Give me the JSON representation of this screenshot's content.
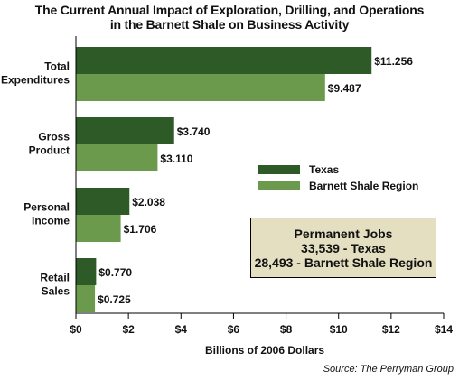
{
  "title_lines": [
    "The Current Annual Impact of Exploration, Drilling, and Operations",
    "in the Barnett Shale on Business Activity"
  ],
  "callout": {
    "heading": "Permanent Jobs",
    "line1": "33,539 - Texas",
    "line2": "28,493 - Barnett Shale Region",
    "background": "#e5dfc1"
  },
  "source": "Source: The Perryman Group",
  "colors": {
    "texas": "#2d5a27",
    "barnett": "#6c9a4d"
  },
  "chart_data": {
    "type": "bar",
    "orientation": "horizontal",
    "categories": [
      [
        "Total",
        "Expenditures"
      ],
      [
        "Gross",
        "Product"
      ],
      [
        "Personal",
        "Income"
      ],
      [
        "Retail",
        "Sales"
      ]
    ],
    "series": [
      {
        "name": "Texas",
        "values": [
          11.256,
          3.74,
          2.038,
          0.77
        ],
        "labels": [
          "$11.256",
          "$3.740",
          "$2.038",
          "$0.770"
        ]
      },
      {
        "name": "Barnett Shale Region",
        "values": [
          9.487,
          3.11,
          1.706,
          0.725
        ],
        "labels": [
          "$9.487",
          "$3.110",
          "$1.706",
          "$0.725"
        ]
      }
    ],
    "xlim": [
      0,
      14
    ],
    "ticks": [
      0,
      2,
      4,
      6,
      8,
      10,
      12,
      14
    ],
    "tick_labels": [
      "$0",
      "$2",
      "$4",
      "$6",
      "$8",
      "$10",
      "$12",
      "$14"
    ],
    "xlabel": "Billions of 2006 Dollars",
    "ylabel": "",
    "legend_position": "right",
    "grid": false
  }
}
